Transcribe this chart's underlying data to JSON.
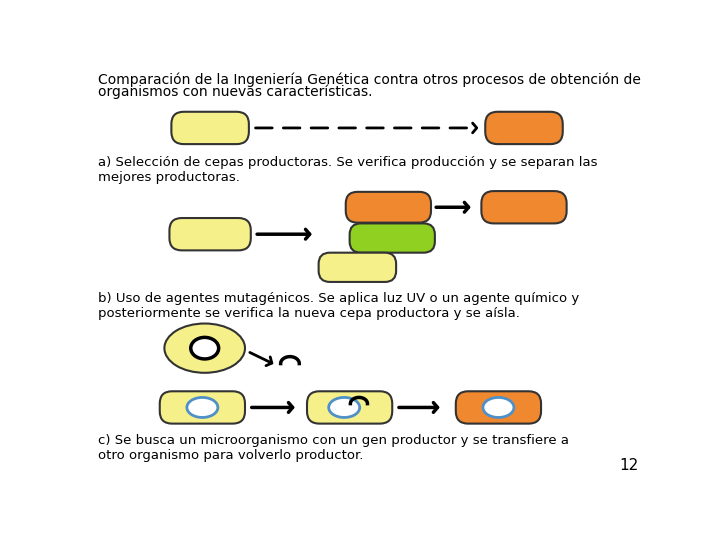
{
  "title_line1": "Comparación de la Ingeniería Genética contra otros procesos de obtención de",
  "title_line2": "organismos con nuevas características.",
  "text_a": "a) Selección de cepas productoras. Se verifica producción y se separan las\nmejores productoras.",
  "text_b": "b) Uso de agentes mutagénicos. Se aplica luz UV o un agente químico y\nposteriormente se verifica la nueva cepa productora y se aísla.",
  "text_c": "c) Se busca un microorganismo con un gen productor y se transfiere a\notro organismo para volverlo productor.",
  "page_number": "12",
  "color_yellow_light": "#F5F08A",
  "color_orange": "#F08830",
  "color_green": "#90D020",
  "color_black": "#000000",
  "color_white": "#FFFFFF",
  "color_blue_ring": "#5090C8",
  "background": "#FFFFFF",
  "font_size_title": 10,
  "font_size_text": 9.5,
  "font_size_page": 11
}
